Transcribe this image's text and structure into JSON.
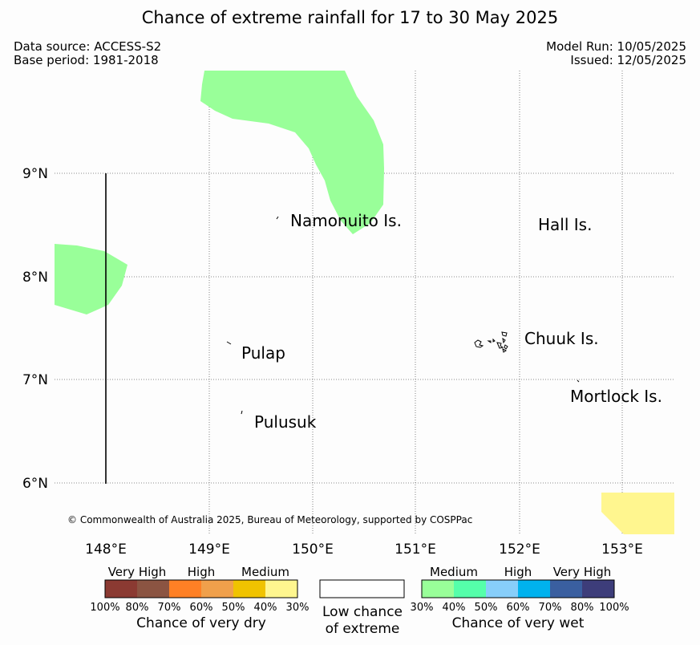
{
  "title": "Chance of extreme rainfall for 17 to 30 May 2025",
  "meta": {
    "data_source": "Data source: ACCESS-S2",
    "base_period": "Base period: 1981-2018",
    "model_run": "Model Run: 10/05/2025",
    "issued": "Issued: 12/05/2025"
  },
  "map": {
    "lat_labels": [
      "9°N",
      "8°N",
      "7°N",
      "6°N"
    ],
    "lon_labels": [
      "148°E",
      "149°E",
      "150°E",
      "151°E",
      "152°E",
      "153°E"
    ],
    "places": {
      "namonuito": "Namonuito Is.",
      "hall": "Hall Is.",
      "pulap": "Pulap",
      "chuuk": "Chuuk Is.",
      "pulusuk": "Pulusuk",
      "mortlock": "Mortlock Is."
    },
    "copyright": "© Commonwealth of Australia 2025, Bureau of Meteorology, supported by COSPPac",
    "region_colors": {
      "wet_medium": "#99ff99",
      "dry_medium": "#fff68f"
    }
  },
  "legend": {
    "dry": {
      "categories": [
        "Very High",
        "High",
        "Medium"
      ],
      "ticks": [
        "100%",
        "80%",
        "70%",
        "60%",
        "50%",
        "40%",
        "30%"
      ],
      "colors": [
        "#8b3a32",
        "#8b5442",
        "#ff8025",
        "#f0a04b",
        "#f0c300",
        "#fff68f"
      ],
      "caption": "Chance of very dry"
    },
    "low": {
      "line1": "Low chance",
      "line2": "of extreme",
      "color": "#ffffff"
    },
    "wet": {
      "categories": [
        "Medium",
        "High",
        "Very High"
      ],
      "ticks": [
        "30%",
        "40%",
        "50%",
        "60%",
        "70%",
        "80%",
        "100%"
      ],
      "colors": [
        "#99ff99",
        "#55ffaa",
        "#87cefa",
        "#00b2ee",
        "#3a5fa0",
        "#3d3d7a"
      ],
      "caption": "Chance of very wet"
    }
  }
}
